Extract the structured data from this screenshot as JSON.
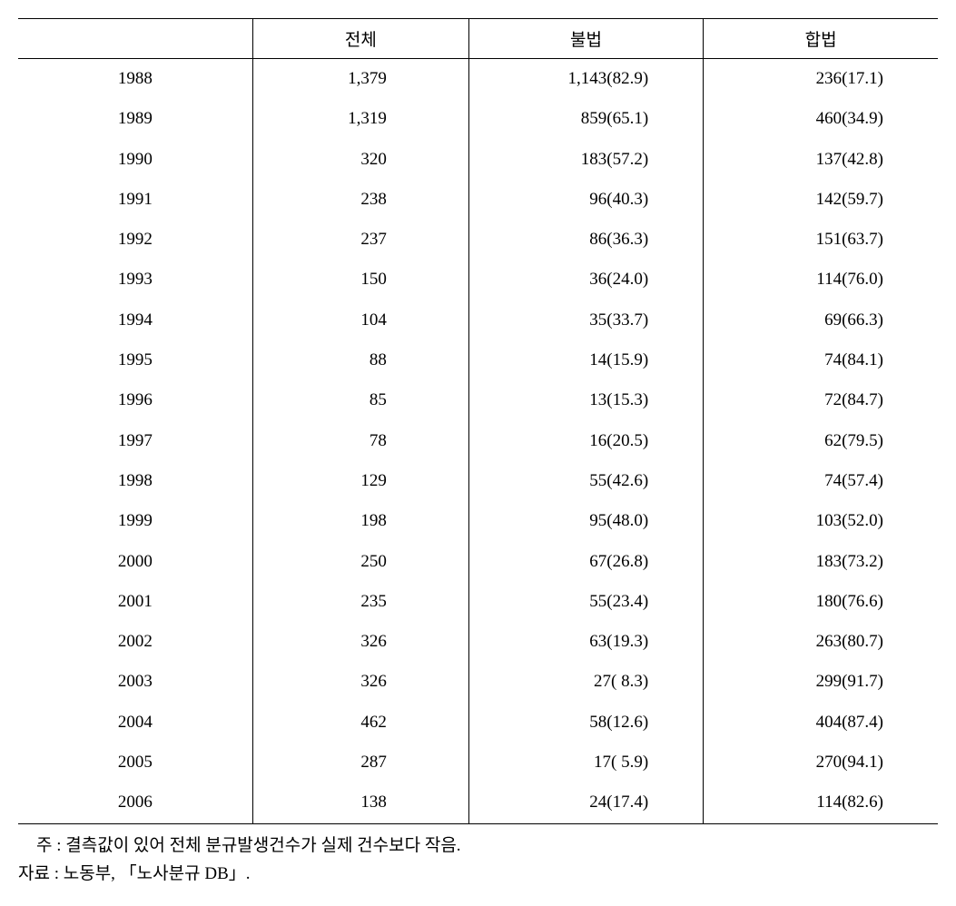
{
  "table": {
    "type": "table",
    "columns": [
      "",
      "전체",
      "불법",
      "합법"
    ],
    "rows": [
      {
        "year": "1988",
        "total": "1,379",
        "illegal": "1,143(82.9)",
        "legal": "236(17.1)"
      },
      {
        "year": "1989",
        "total": "1,319",
        "illegal": "859(65.1)",
        "legal": "460(34.9)"
      },
      {
        "year": "1990",
        "total": "320",
        "illegal": "183(57.2)",
        "legal": "137(42.8)"
      },
      {
        "year": "1991",
        "total": "238",
        "illegal": "96(40.3)",
        "legal": "142(59.7)"
      },
      {
        "year": "1992",
        "total": "237",
        "illegal": "86(36.3)",
        "legal": "151(63.7)"
      },
      {
        "year": "1993",
        "total": "150",
        "illegal": "36(24.0)",
        "legal": "114(76.0)"
      },
      {
        "year": "1994",
        "total": "104",
        "illegal": "35(33.7)",
        "legal": "69(66.3)"
      },
      {
        "year": "1995",
        "total": "88",
        "illegal": "14(15.9)",
        "legal": "74(84.1)"
      },
      {
        "year": "1996",
        "total": "85",
        "illegal": "13(15.3)",
        "legal": "72(84.7)"
      },
      {
        "year": "1997",
        "total": "78",
        "illegal": "16(20.5)",
        "legal": "62(79.5)"
      },
      {
        "year": "1998",
        "total": "129",
        "illegal": "55(42.6)",
        "legal": "74(57.4)"
      },
      {
        "year": "1999",
        "total": "198",
        "illegal": "95(48.0)",
        "legal": "103(52.0)"
      },
      {
        "year": "2000",
        "total": "250",
        "illegal": "67(26.8)",
        "legal": "183(73.2)"
      },
      {
        "year": "2001",
        "total": "235",
        "illegal": "55(23.4)",
        "legal": "180(76.6)"
      },
      {
        "year": "2002",
        "total": "326",
        "illegal": "63(19.3)",
        "legal": "263(80.7)"
      },
      {
        "year": "2003",
        "total": "326",
        "illegal": "27( 8.3)",
        "legal": "299(91.7)"
      },
      {
        "year": "2004",
        "total": "462",
        "illegal": "58(12.6)",
        "legal": "404(87.4)"
      },
      {
        "year": "2005",
        "total": "287",
        "illegal": "17( 5.9)",
        "legal": "270(94.1)"
      },
      {
        "year": "2006",
        "total": "138",
        "illegal": "24(17.4)",
        "legal": "114(82.6)"
      }
    ],
    "styling": {
      "border_color": "#000000",
      "background_color": "#ffffff",
      "text_color": "#000000",
      "font_size_pt": 14,
      "header_border_top_width": 1.5,
      "header_border_bottom_width": 1,
      "body_border_bottom_width": 1.5,
      "col_year_align": "center",
      "col_data_align": "right",
      "column_widths_pct": [
        25.5,
        23.5,
        25.5,
        25.5
      ],
      "row_line_height": 1.7
    }
  },
  "footnotes": {
    "note": "주 : 결측값이 있어 전체 분규발생건수가 실제 건수보다 작음.",
    "source": "자료 : 노동부, 「노사분규 DB」."
  }
}
